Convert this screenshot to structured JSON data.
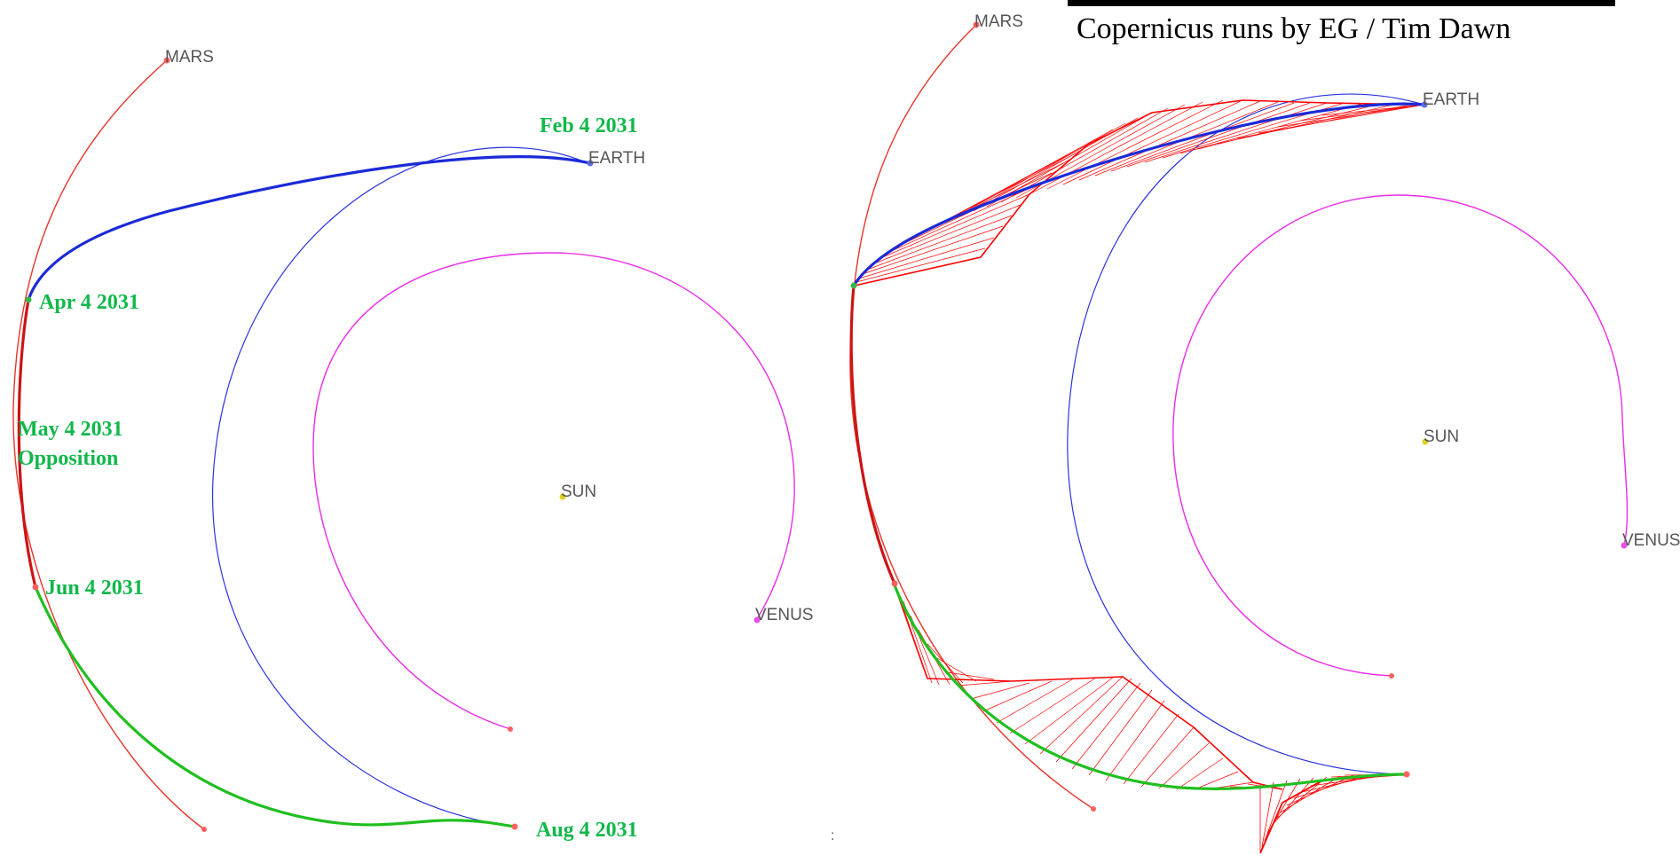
{
  "colors": {
    "mars_orbit": "#e8342b",
    "earth_orbit": "#2a33e0",
    "venus_orbit": "#e82ce8",
    "outbound_leg": "#1a2ad8",
    "mars_stay": "#cc1414",
    "return_leg": "#1fbf1f",
    "thrust_lines": "#ff0000",
    "date_labels": "#11b84a",
    "planet_labels": "#555555",
    "sun": "#e0d020"
  },
  "left_panel": {
    "planet_labels": {
      "mars": "MARS",
      "earth": "EARTH",
      "sun": "SUN",
      "venus": "VENUS"
    },
    "date_labels": {
      "departure": "Feb 4 2031",
      "arrival": "Apr 4 2031",
      "opposition_date": "May 4 2031",
      "opposition_word": "Opposition",
      "mars_departure": "Jun 4 2031",
      "return": "Aug 4 2031"
    }
  },
  "right_panel": {
    "credit": "Copernicus runs by EG / Tim Dawn",
    "planet_labels": {
      "mars": "MARS",
      "earth": "EARTH",
      "sun": "SUN",
      "venus": "VENUS"
    }
  },
  "separator": ":"
}
